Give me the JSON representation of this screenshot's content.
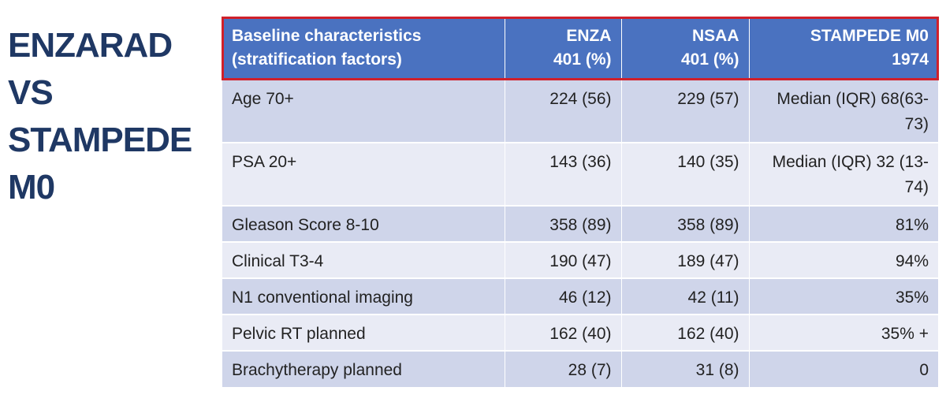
{
  "slide": {
    "title": [
      "ENZARAD",
      "VS",
      "STAMPEDE",
      "M0"
    ],
    "table": {
      "header": [
        [
          "Baseline characteristics",
          "(stratification factors)"
        ],
        [
          "ENZA",
          "401  (%)"
        ],
        [
          "NSAA",
          "401 (%)"
        ],
        [
          "STAMPEDE M0",
          "1974"
        ]
      ],
      "rows": [
        [
          "Age 70+",
          "224 (56)",
          "229 (57)",
          "Median (IQR) 68(63-73)"
        ],
        [
          "PSA 20+",
          "143 (36)",
          "140 (35)",
          "Median (IQR) 32 (13-74)"
        ],
        [
          "Gleason Score 8-10",
          "358 (89)",
          "358 (89)",
          "81%"
        ],
        [
          "Clinical T3-4",
          "190 (47)",
          "189 (47)",
          "94%"
        ],
        [
          "N1 conventional imaging",
          "46 (12)",
          "42 (11)",
          "35%"
        ],
        [
          "Pelvic RT planned",
          "162 (40)",
          "162 (40)",
          "35% +"
        ],
        [
          "Brachytherapy planned",
          "28 (7)",
          "31 (8)",
          "0"
        ]
      ]
    }
  }
}
